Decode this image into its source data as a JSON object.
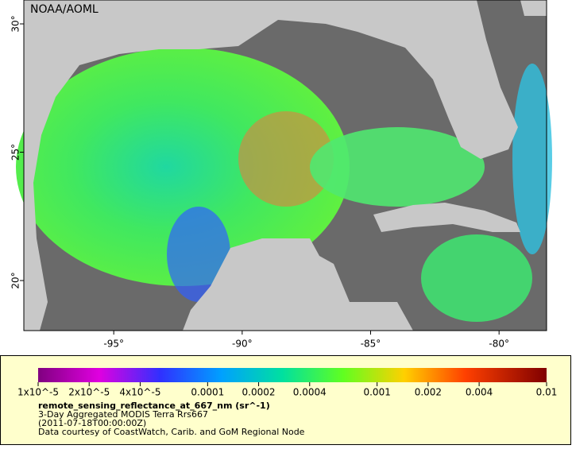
{
  "map": {
    "source": "NOAA/AOML",
    "lonlim": [
      -98.5,
      -78.15
    ],
    "latlim": [
      18.05,
      30.93
    ],
    "lon_ticks": [
      {
        "value": -95,
        "label": "-95°"
      },
      {
        "value": -90,
        "label": "-90°"
      },
      {
        "value": -85,
        "label": "-85°"
      },
      {
        "value": -80,
        "label": "-80°"
      }
    ],
    "lat_ticks": [
      {
        "value": 30,
        "label": "30°"
      },
      {
        "value": 25,
        "label": "25°"
      },
      {
        "value": 20,
        "label": "20°"
      }
    ]
  },
  "colorbar": {
    "range": [
      1e-05,
      0.01
    ],
    "log": true,
    "ticks": [
      {
        "value": 1e-05,
        "label": "1x10^-5"
      },
      {
        "value": 2e-05,
        "label": "2x10^-5"
      },
      {
        "value": 4e-05,
        "label": "4x10^-5"
      },
      {
        "value": 0.0001,
        "label": "0.0001"
      },
      {
        "value": 0.0002,
        "label": "0.0002"
      },
      {
        "value": 0.0004,
        "label": "0.0004"
      },
      {
        "value": 0.001,
        "label": "0.001"
      },
      {
        "value": 0.002,
        "label": "0.002"
      },
      {
        "value": 0.004,
        "label": "0.004"
      },
      {
        "value": 0.01,
        "label": "0.01"
      }
    ],
    "variable": "remote_sensing_reflectance_at_667_nm (sr^-1)",
    "description": "3-Day Aggregated MODIS Terra Rrs667",
    "time": "(2011-07-18T00:00:00Z)",
    "credit": "Data courtesy of CoastWatch, Carib. and GoM Regional Node"
  }
}
